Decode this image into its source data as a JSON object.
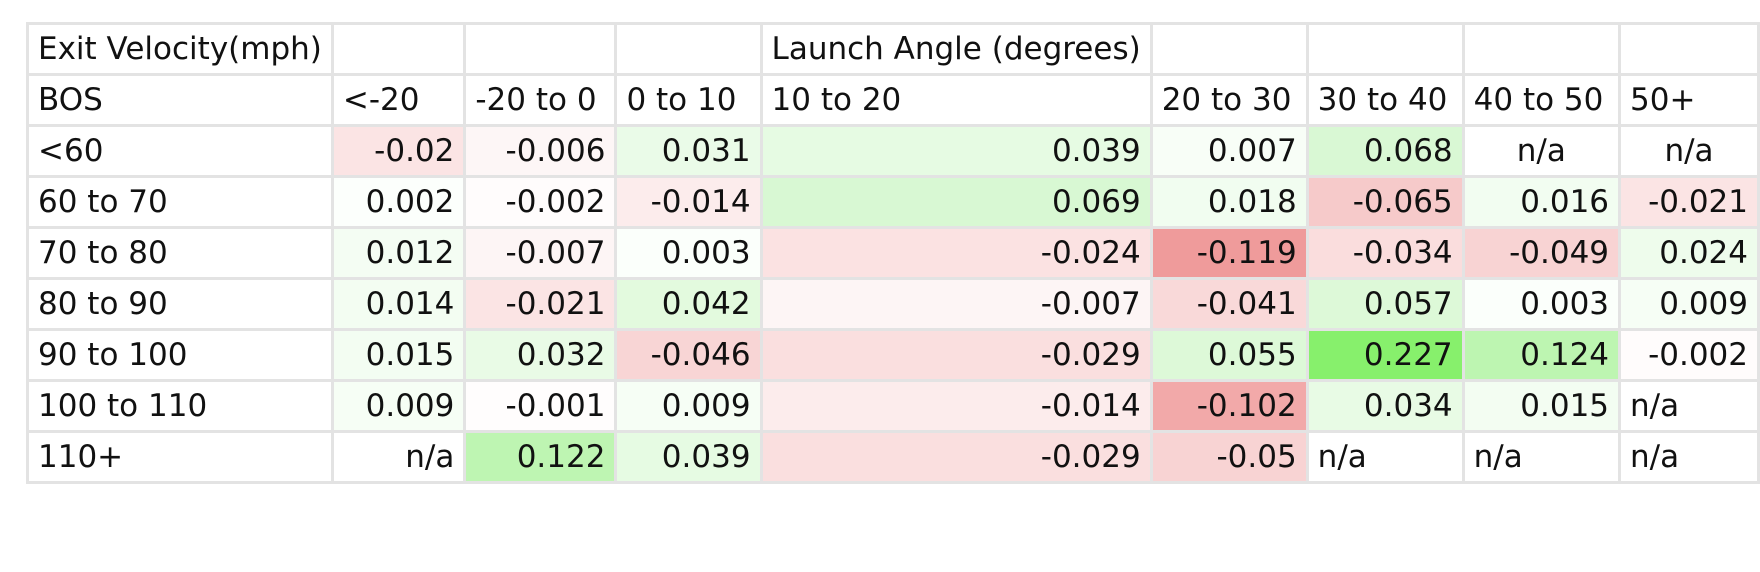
{
  "table": {
    "title_row": [
      "Exit Velocity(mph)",
      "",
      "",
      "",
      "Launch Angle (degrees)",
      "",
      "",
      "",
      ""
    ],
    "header_row": [
      "BOS",
      "<-20",
      "-20 to 0",
      "0 to 10",
      "10 to 20",
      "20 to 30",
      "30 to 40",
      "40 to 50",
      "50+"
    ],
    "rows": [
      {
        "label": "<60",
        "cells": [
          {
            "v": "-0.02",
            "a": "r",
            "bg": "#fbe4e4"
          },
          {
            "v": "-0.006",
            "a": "r",
            "bg": "#fdf6f6"
          },
          {
            "v": "0.031",
            "a": "r",
            "bg": "#eafbe8"
          },
          {
            "v": "0.039",
            "a": "r",
            "bg": "#e6fbe3"
          },
          {
            "v": "0.007",
            "a": "r",
            "bg": "#f8fef7"
          },
          {
            "v": "0.068",
            "a": "r",
            "bg": "#d9f8d4"
          },
          {
            "v": "n/a",
            "a": "c",
            "bg": "#ffffff"
          },
          {
            "v": "n/a",
            "a": "c",
            "bg": "#ffffff"
          }
        ]
      },
      {
        "label": "60 to 70",
        "cells": [
          {
            "v": "0.002",
            "a": "r",
            "bg": "#fcfffc"
          },
          {
            "v": "-0.002",
            "a": "r",
            "bg": "#fffcfc"
          },
          {
            "v": "-0.014",
            "a": "r",
            "bg": "#fcecec"
          },
          {
            "v": "0.069",
            "a": "r",
            "bg": "#d8f8d3"
          },
          {
            "v": "0.018",
            "a": "r",
            "bg": "#f1fdf0"
          },
          {
            "v": "-0.065",
            "a": "r",
            "bg": "#f6caca"
          },
          {
            "v": "0.016",
            "a": "r",
            "bg": "#f2fdf1"
          },
          {
            "v": "-0.021",
            "a": "r",
            "bg": "#fbe4e4"
          }
        ]
      },
      {
        "label": "70 to 80",
        "cells": [
          {
            "v": "0.012",
            "a": "r",
            "bg": "#f4fdf3"
          },
          {
            "v": "-0.007",
            "a": "r",
            "bg": "#fdf5f5"
          },
          {
            "v": "0.003",
            "a": "r",
            "bg": "#fbfffb"
          },
          {
            "v": "-0.024",
            "a": "r",
            "bg": "#fbe2e2"
          },
          {
            "v": "-0.119",
            "a": "r",
            "bg": "#ef9b9b"
          },
          {
            "v": "-0.034",
            "a": "r",
            "bg": "#fadddd"
          },
          {
            "v": "-0.049",
            "a": "r",
            "bg": "#f8d3d3"
          },
          {
            "v": "0.024",
            "a": "r",
            "bg": "#eefcec"
          }
        ]
      },
      {
        "label": "80 to 90",
        "cells": [
          {
            "v": "0.014",
            "a": "r",
            "bg": "#f3fdf2"
          },
          {
            "v": "-0.021",
            "a": "r",
            "bg": "#fbe4e4"
          },
          {
            "v": "0.042",
            "a": "r",
            "bg": "#e3fade"
          },
          {
            "v": "-0.007",
            "a": "r",
            "bg": "#fdf5f5"
          },
          {
            "v": "-0.041",
            "a": "r",
            "bg": "#f9d9d9"
          },
          {
            "v": "0.057",
            "a": "r",
            "bg": "#ddf9d8"
          },
          {
            "v": "0.003",
            "a": "r",
            "bg": "#fbfffb"
          },
          {
            "v": "0.009",
            "a": "r",
            "bg": "#f6fef5"
          }
        ]
      },
      {
        "label": "90 to 100",
        "cells": [
          {
            "v": "0.015",
            "a": "r",
            "bg": "#f3fdf2"
          },
          {
            "v": "0.032",
            "a": "r",
            "bg": "#e9fbe6"
          },
          {
            "v": "-0.046",
            "a": "r",
            "bg": "#f8d5d5"
          },
          {
            "v": "-0.029",
            "a": "r",
            "bg": "#fadfdf"
          },
          {
            "v": "0.055",
            "a": "r",
            "bg": "#ddf9d8"
          },
          {
            "v": "0.227",
            "a": "r",
            "bg": "#87f06c"
          },
          {
            "v": "0.124",
            "a": "r",
            "bg": "#bdf5b1"
          },
          {
            "v": "-0.002",
            "a": "r",
            "bg": "#fffcfc"
          }
        ]
      },
      {
        "label": "100 to 110",
        "cells": [
          {
            "v": "0.009",
            "a": "r",
            "bg": "#f6fef5"
          },
          {
            "v": "-0.001",
            "a": "r",
            "bg": "#fffdfd"
          },
          {
            "v": "0.009",
            "a": "r",
            "bg": "#f6fef5"
          },
          {
            "v": "-0.014",
            "a": "r",
            "bg": "#fcecec"
          },
          {
            "v": "-0.102",
            "a": "r",
            "bg": "#f2a9a9"
          },
          {
            "v": "0.034",
            "a": "r",
            "bg": "#e8fbe5"
          },
          {
            "v": "0.015",
            "a": "r",
            "bg": "#f3fdf2"
          },
          {
            "v": "n/a",
            "a": "l",
            "bg": "#ffffff"
          }
        ]
      },
      {
        "label": "110+",
        "cells": [
          {
            "v": "n/a",
            "a": "r",
            "bg": "#ffffff"
          },
          {
            "v": "0.122",
            "a": "r",
            "bg": "#bef5b2"
          },
          {
            "v": "0.039",
            "a": "r",
            "bg": "#e6fbe3"
          },
          {
            "v": "-0.029",
            "a": "r",
            "bg": "#fadfdf"
          },
          {
            "v": "-0.05",
            "a": "r",
            "bg": "#f8d3d3"
          },
          {
            "v": "n/a",
            "a": "l",
            "bg": "#ffffff"
          },
          {
            "v": "n/a",
            "a": "l",
            "bg": "#ffffff"
          },
          {
            "v": "n/a",
            "a": "l",
            "bg": "#ffffff"
          }
        ]
      }
    ]
  }
}
